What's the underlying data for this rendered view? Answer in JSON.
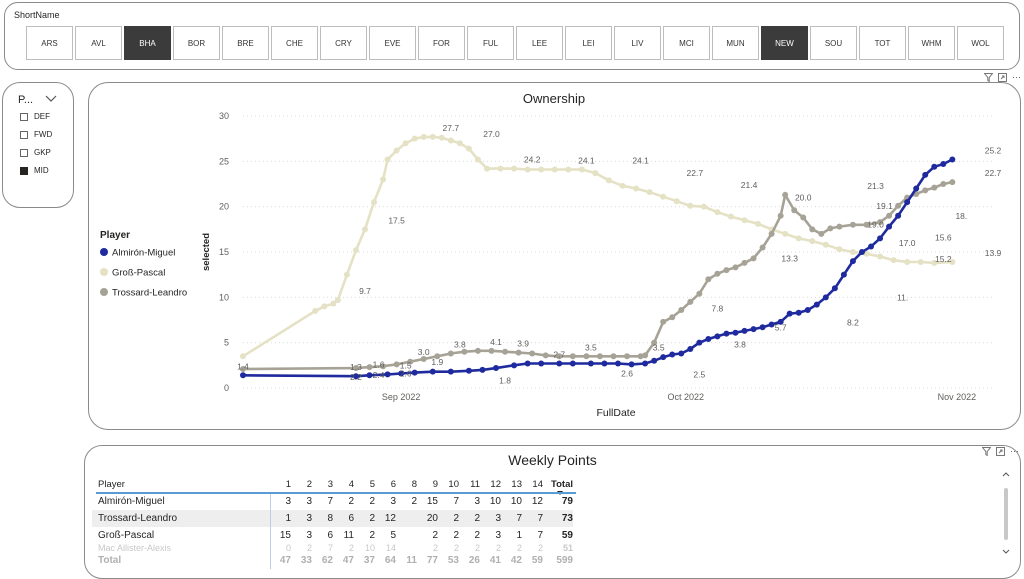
{
  "slicer": {
    "title": "ShortName",
    "teams": [
      {
        "label": "ARS",
        "selected": false
      },
      {
        "label": "AVL",
        "selected": false
      },
      {
        "label": "BHA",
        "selected": true
      },
      {
        "label": "BOR",
        "selected": false
      },
      {
        "label": "BRE",
        "selected": false
      },
      {
        "label": "CHE",
        "selected": false
      },
      {
        "label": "CRY",
        "selected": false
      },
      {
        "label": "EVE",
        "selected": false
      },
      {
        "label": "FOR",
        "selected": false
      },
      {
        "label": "FUL",
        "selected": false
      },
      {
        "label": "LEE",
        "selected": false
      },
      {
        "label": "LEI",
        "selected": false
      },
      {
        "label": "LIV",
        "selected": false
      },
      {
        "label": "MCI",
        "selected": false
      },
      {
        "label": "MUN",
        "selected": false
      },
      {
        "label": "NEW",
        "selected": true
      },
      {
        "label": "SOU",
        "selected": false
      },
      {
        "label": "TOT",
        "selected": false
      },
      {
        "label": "WHM",
        "selected": false
      },
      {
        "label": "WOL",
        "selected": false
      }
    ]
  },
  "position_slicer": {
    "title": "P...",
    "items": [
      {
        "label": "DEF",
        "checked": false
      },
      {
        "label": "FWD",
        "checked": false
      },
      {
        "label": "GKP",
        "checked": false
      },
      {
        "label": "MID",
        "checked": true
      }
    ]
  },
  "visual_header": {
    "filter_icon": "filter-icon",
    "focus_icon": "focus-mode-icon",
    "more": "⋯"
  },
  "chart_data": {
    "type": "line",
    "title": "Ownership",
    "xlabel": "FullDate",
    "ylabel": "selected",
    "x_ticks": [
      "Sep 2022",
      "Oct 2022",
      "Nov 2022"
    ],
    "ylim": [
      0,
      30
    ],
    "y_ticks": [
      "0",
      "5",
      "10",
      "15",
      "20",
      "25",
      "30"
    ],
    "legend_title": "Player",
    "legend_position": "left",
    "grid": "horizontal dotted",
    "series": [
      {
        "name": "Almirón-Miguel",
        "color": "#1f2a9e",
        "values": [
          [
            0,
            1.4
          ],
          [
            25,
            1.3
          ],
          [
            28,
            1.4
          ],
          [
            32,
            1.5
          ],
          [
            35,
            1.6
          ],
          [
            38,
            1.7
          ],
          [
            42,
            1.8
          ],
          [
            46,
            1.8
          ],
          [
            50,
            1.9
          ],
          [
            53,
            2.0
          ],
          [
            56,
            2.2
          ],
          [
            60,
            2.5
          ],
          [
            63,
            2.7
          ],
          [
            66,
            2.7
          ],
          [
            70,
            2.7
          ],
          [
            73,
            2.7
          ],
          [
            77,
            2.7
          ],
          [
            80,
            2.7
          ],
          [
            83,
            2.7
          ],
          [
            86,
            2.6
          ],
          [
            89,
            2.7
          ],
          [
            91,
            3.0
          ],
          [
            93,
            3.4
          ],
          [
            95,
            3.7
          ],
          [
            97,
            3.8
          ],
          [
            99,
            4.3
          ],
          [
            101,
            5.0
          ],
          [
            103,
            5.4
          ],
          [
            105,
            5.7
          ],
          [
            107,
            6.0
          ],
          [
            109,
            6.1
          ],
          [
            111,
            6.3
          ],
          [
            113,
            6.5
          ],
          [
            115,
            6.7
          ],
          [
            117,
            7.0
          ],
          [
            119,
            7.3
          ],
          [
            121,
            8.2
          ],
          [
            123,
            8.3
          ],
          [
            125,
            8.6
          ],
          [
            127,
            9.2
          ],
          [
            129,
            10.0
          ],
          [
            131,
            11.0
          ],
          [
            133,
            12.5
          ],
          [
            135,
            14.0
          ],
          [
            137,
            15.0
          ],
          [
            139,
            15.6
          ],
          [
            141,
            16.5
          ],
          [
            143,
            17.8
          ],
          [
            145,
            19.0
          ],
          [
            147,
            20.5
          ],
          [
            149,
            22.0
          ],
          [
            151,
            23.5
          ],
          [
            153,
            24.4
          ],
          [
            155,
            24.7
          ],
          [
            157,
            25.2
          ]
        ],
        "labels": []
      },
      {
        "name": "Groß-Pascal",
        "color": "#e4e1c4",
        "values": [
          [
            0,
            3.5
          ],
          [
            16,
            8.5
          ],
          [
            18,
            9.0
          ],
          [
            20,
            9.3
          ],
          [
            21,
            9.7
          ],
          [
            23,
            12.5
          ],
          [
            25,
            15.2
          ],
          [
            27,
            17.5
          ],
          [
            29,
            20.5
          ],
          [
            31,
            23.0
          ],
          [
            32,
            25.2
          ],
          [
            34,
            26.2
          ],
          [
            36,
            27.0
          ],
          [
            38,
            27.5
          ],
          [
            40,
            27.7
          ],
          [
            42,
            27.7
          ],
          [
            44,
            27.6
          ],
          [
            46,
            27.3
          ],
          [
            48,
            27.0
          ],
          [
            50,
            26.4
          ],
          [
            52,
            25.2
          ],
          [
            54,
            24.2
          ],
          [
            57,
            24.2
          ],
          [
            60,
            24.2
          ],
          [
            63,
            24.1
          ],
          [
            66,
            24.1
          ],
          [
            69,
            24.1
          ],
          [
            72,
            24.1
          ],
          [
            75,
            24.1
          ],
          [
            78,
            23.7
          ],
          [
            81,
            22.9
          ],
          [
            84,
            22.3
          ],
          [
            87,
            22.0
          ],
          [
            90,
            21.6
          ],
          [
            93,
            21.1
          ],
          [
            96,
            20.6
          ],
          [
            99,
            20.1
          ],
          [
            102,
            20.0
          ],
          [
            105,
            19.4
          ],
          [
            108,
            18.9
          ],
          [
            111,
            18.5
          ],
          [
            114,
            18.1
          ],
          [
            117,
            17.5
          ],
          [
            120,
            17.0
          ],
          [
            123,
            16.5
          ],
          [
            126,
            16.2
          ],
          [
            129,
            15.8
          ],
          [
            132,
            15.3
          ],
          [
            135,
            15.0
          ],
          [
            138,
            14.8
          ],
          [
            141,
            14.5
          ],
          [
            144,
            14.1
          ],
          [
            147,
            13.9
          ],
          [
            150,
            13.9
          ],
          [
            153,
            13.8
          ],
          [
            157,
            13.9
          ]
        ],
        "labels": []
      },
      {
        "name": "Trossard-Leandro",
        "color": "#a6a396",
        "values": [
          [
            0,
            2.1
          ],
          [
            25,
            2.2
          ],
          [
            28,
            2.3
          ],
          [
            31,
            2.4
          ],
          [
            34,
            2.6
          ],
          [
            37,
            2.9
          ],
          [
            40,
            3.2
          ],
          [
            43,
            3.5
          ],
          [
            46,
            3.8
          ],
          [
            49,
            4.0
          ],
          [
            52,
            4.1
          ],
          [
            55,
            4.1
          ],
          [
            58,
            4.0
          ],
          [
            61,
            3.9
          ],
          [
            64,
            3.8
          ],
          [
            67,
            3.6
          ],
          [
            70,
            3.5
          ],
          [
            73,
            3.5
          ],
          [
            76,
            3.5
          ],
          [
            79,
            3.5
          ],
          [
            82,
            3.5
          ],
          [
            85,
            3.5
          ],
          [
            88,
            3.5
          ],
          [
            89,
            3.6
          ],
          [
            91,
            5.0
          ],
          [
            93,
            7.3
          ],
          [
            95,
            7.8
          ],
          [
            97,
            8.6
          ],
          [
            99,
            9.5
          ],
          [
            101,
            10.4
          ],
          [
            103,
            12.0
          ],
          [
            105,
            12.6
          ],
          [
            107,
            13.0
          ],
          [
            109,
            13.3
          ],
          [
            111,
            13.8
          ],
          [
            113,
            14.3
          ],
          [
            115,
            15.5
          ],
          [
            117,
            17.0
          ],
          [
            119,
            19.0
          ],
          [
            120,
            21.3
          ],
          [
            122,
            19.6
          ],
          [
            124,
            18.8
          ],
          [
            126,
            17.5
          ],
          [
            128,
            17.0
          ],
          [
            130,
            17.6
          ],
          [
            132,
            17.8
          ],
          [
            135,
            18.0
          ],
          [
            138,
            18.0
          ],
          [
            141,
            18.3
          ],
          [
            143,
            19.0
          ],
          [
            145,
            20.1
          ],
          [
            147,
            21.0
          ],
          [
            149,
            21.4
          ],
          [
            151,
            21.8
          ],
          [
            153,
            22.1
          ],
          [
            155,
            22.5
          ],
          [
            157,
            22.7
          ]
        ],
        "labels": []
      }
    ],
    "annotations": [
      {
        "text": "1.4",
        "x": 0,
        "y": 1.4
      },
      {
        "text": "1.3",
        "x": 25,
        "y": 1.3
      },
      {
        "text": "2.2",
        "x": 25,
        "y": 2.2
      },
      {
        "text": "1.6",
        "x": 30,
        "y": 1.6
      },
      {
        "text": "2.4",
        "x": 30,
        "y": 2.4
      },
      {
        "text": "1.5",
        "x": 36,
        "y": 1.5
      },
      {
        "text": "2.6",
        "x": 36,
        "y": 2.6
      },
      {
        "text": "1.9",
        "x": 43,
        "y": 1.9
      },
      {
        "text": "3.0",
        "x": 40,
        "y": 3.0
      },
      {
        "text": "3.8",
        "x": 48,
        "y": 3.8
      },
      {
        "text": "4.1",
        "x": 56,
        "y": 4.1
      },
      {
        "text": "1.8",
        "x": 58,
        "y": 1.8
      },
      {
        "text": "3.9",
        "x": 62,
        "y": 3.9
      },
      {
        "text": "2.7",
        "x": 70,
        "y": 2.7
      },
      {
        "text": "3.5",
        "x": 77,
        "y": 3.5
      },
      {
        "text": "2.6",
        "x": 85,
        "y": 2.6
      },
      {
        "text": "3.5",
        "x": 92,
        "y": 3.5
      },
      {
        "text": "2.5",
        "x": 101,
        "y": 2.5
      },
      {
        "text": "3.8",
        "x": 110,
        "y": 3.8
      },
      {
        "text": "5.7",
        "x": 119,
        "y": 5.7
      },
      {
        "text": "7.8",
        "x": 105,
        "y": 7.8
      },
      {
        "text": "8.2",
        "x": 135,
        "y": 8.2
      },
      {
        "text": "13.3",
        "x": 121,
        "y": 13.3
      },
      {
        "text": "11.",
        "x": 146,
        "y": 11.0
      },
      {
        "text": "15.6",
        "x": 155,
        "y": 15.6
      },
      {
        "text": "15.2",
        "x": 155,
        "y": 15.2
      },
      {
        "text": "17.0",
        "x": 147,
        "y": 17.0
      },
      {
        "text": "19.0",
        "x": 140,
        "y": 19.0
      },
      {
        "text": "19.1",
        "x": 142,
        "y": 19.1
      },
      {
        "text": "21.3",
        "x": 140,
        "y": 21.3
      },
      {
        "text": "18.",
        "x": 159,
        "y": 18.0
      },
      {
        "text": "9.7",
        "x": 27,
        "y": 9.7
      },
      {
        "text": "17.5",
        "x": 34,
        "y": 17.5
      },
      {
        "text": "27.7",
        "x": 46,
        "y": 27.7
      },
      {
        "text": "27.0",
        "x": 55,
        "y": 27.0
      },
      {
        "text": "24.2",
        "x": 64,
        "y": 24.2
      },
      {
        "text": "24.1",
        "x": 76,
        "y": 24.1
      },
      {
        "text": "24.1",
        "x": 88,
        "y": 24.1
      },
      {
        "text": "22.7",
        "x": 100,
        "y": 22.7
      },
      {
        "text": "21.4",
        "x": 112,
        "y": 21.4
      },
      {
        "text": "20.0",
        "x": 124,
        "y": 20.0
      },
      {
        "text": "25.2",
        "x": 166,
        "y": 25.2
      },
      {
        "text": "22.7",
        "x": 166,
        "y": 22.7
      },
      {
        "text": "13.9",
        "x": 166,
        "y": 13.9
      }
    ]
  },
  "weekly_points": {
    "title": "Weekly Points",
    "headers": {
      "player": "Player",
      "weeks": [
        "1",
        "2",
        "3",
        "4",
        "5",
        "6",
        "8",
        "9",
        "10",
        "11",
        "12",
        "13",
        "14"
      ],
      "total": "Total",
      "sort_icon": "sort-desc-icon"
    },
    "rows": [
      {
        "player": "Almirón-Miguel",
        "weeks": [
          "3",
          "3",
          "7",
          "2",
          "2",
          "3",
          "2",
          "15",
          "7",
          "3",
          "10",
          "10",
          "12"
        ],
        "total": "79"
      },
      {
        "player": "Trossard-Leandro",
        "weeks": [
          "1",
          "3",
          "8",
          "6",
          "2",
          "12",
          "",
          "20",
          "2",
          "2",
          "3",
          "7",
          "7"
        ],
        "total": "73"
      },
      {
        "player": "Groß-Pascal",
        "weeks": [
          "15",
          "3",
          "6",
          "11",
          "2",
          "5",
          "",
          "2",
          "2",
          "2",
          "3",
          "1",
          "7"
        ],
        "total": "59"
      },
      {
        "player": "Mac Allister-Alexis",
        "weeks": [
          "0",
          "2",
          "7",
          "2",
          "10",
          "14",
          "",
          "2",
          "2",
          "2",
          "2",
          "2",
          "2"
        ],
        "total": "51"
      }
    ],
    "totals": {
      "label": "Total",
      "weeks": [
        "47",
        "33",
        "62",
        "47",
        "37",
        "64",
        "11",
        "77",
        "53",
        "26",
        "41",
        "42",
        "59"
      ],
      "total": "599"
    }
  }
}
